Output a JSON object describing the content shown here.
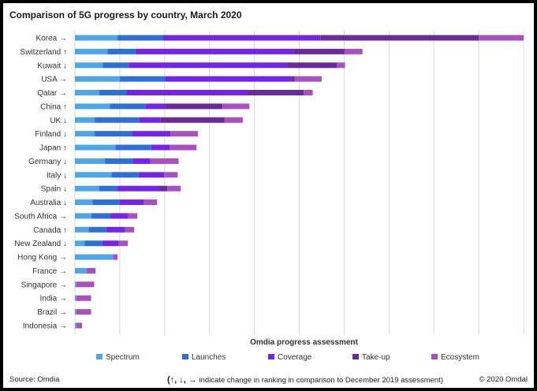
{
  "chart_data": {
    "type": "bar",
    "orientation": "horizontal",
    "stacked": true,
    "title": "Comparison of 5G progress by country, March 2020",
    "xlabel": "Omdia progress assessment",
    "ylabel": "",
    "xlim": [
      0,
      100
    ],
    "x_tick_labels": [],
    "grid": true,
    "legend_position": "bottom",
    "categories": [
      "Korea",
      "Switzerland",
      "Kuwait",
      "USA",
      "Qatar",
      "China",
      "UK",
      "Finland",
      "Japan",
      "Germany",
      "Italy",
      "Spain",
      "Australia",
      "South Africa",
      "Canada",
      "New Zealand",
      "Hong Kong",
      "France",
      "Singapore",
      "India",
      "Brazil",
      "Indonesia"
    ],
    "rank_change": [
      "→",
      "↑",
      "↓",
      "→",
      "→",
      "↑",
      "↓",
      "↓",
      "↑",
      "↓",
      "↓",
      "↓",
      "↓",
      "→",
      "↑",
      "↓",
      "→",
      "→",
      "→",
      "→",
      "→",
      "→"
    ],
    "series": [
      {
        "name": "Spectrum",
        "color": "#4ea6e8",
        "values": [
          9.5,
          7.3,
          6.2,
          10,
          5.4,
          7.8,
          4.4,
          4.4,
          9,
          6.7,
          8.2,
          5.4,
          3.9,
          3.7,
          3.1,
          2.2,
          8.5,
          2.6,
          0.3,
          0.3,
          0.3,
          0.3
        ]
      },
      {
        "name": "Launches",
        "color": "#2d6fd6",
        "values": [
          10.1,
          6.2,
          5.8,
          10.1,
          6.1,
          7.9,
          10,
          8.3,
          8,
          6.2,
          6,
          4.1,
          6,
          4.3,
          3.9,
          3.9,
          0,
          0,
          0,
          0,
          0,
          0
        ]
      },
      {
        "name": "Coverage",
        "color": "#7323ea",
        "values": [
          35.2,
          35.2,
          35.2,
          28.1,
          27,
          4.5,
          4.7,
          8.6,
          4.1,
          3.9,
          5.7,
          9.4,
          5.4,
          3.9,
          4.2,
          3.7,
          0,
          0,
          0,
          0,
          0,
          0
        ]
      },
      {
        "name": "Take-up",
        "color": "#6a2a9c",
        "values": [
          35.2,
          11.4,
          11.2,
          0.8,
          12.5,
          12.7,
          14.2,
          0,
          0,
          0,
          0,
          1.7,
          0,
          0,
          0,
          0,
          0,
          0,
          0,
          0,
          0,
          0
        ]
      },
      {
        "name": "Ecosystem",
        "color": "#a94fbf",
        "values": [
          10,
          4,
          1.8,
          6,
          2,
          6,
          4.1,
          6.1,
          6,
          6.3,
          3,
          3,
          3,
          2,
          2,
          2,
          1,
          2,
          4,
          3.3,
          3.3,
          1.3
        ]
      }
    ]
  },
  "footer": {
    "source": "Source: Omdia",
    "note": "indicate change in ranking in comparison to December 2019 assessment)",
    "note_symbols": "(↑, ↓, →",
    "copyright": "© 2020 Omdal"
  }
}
